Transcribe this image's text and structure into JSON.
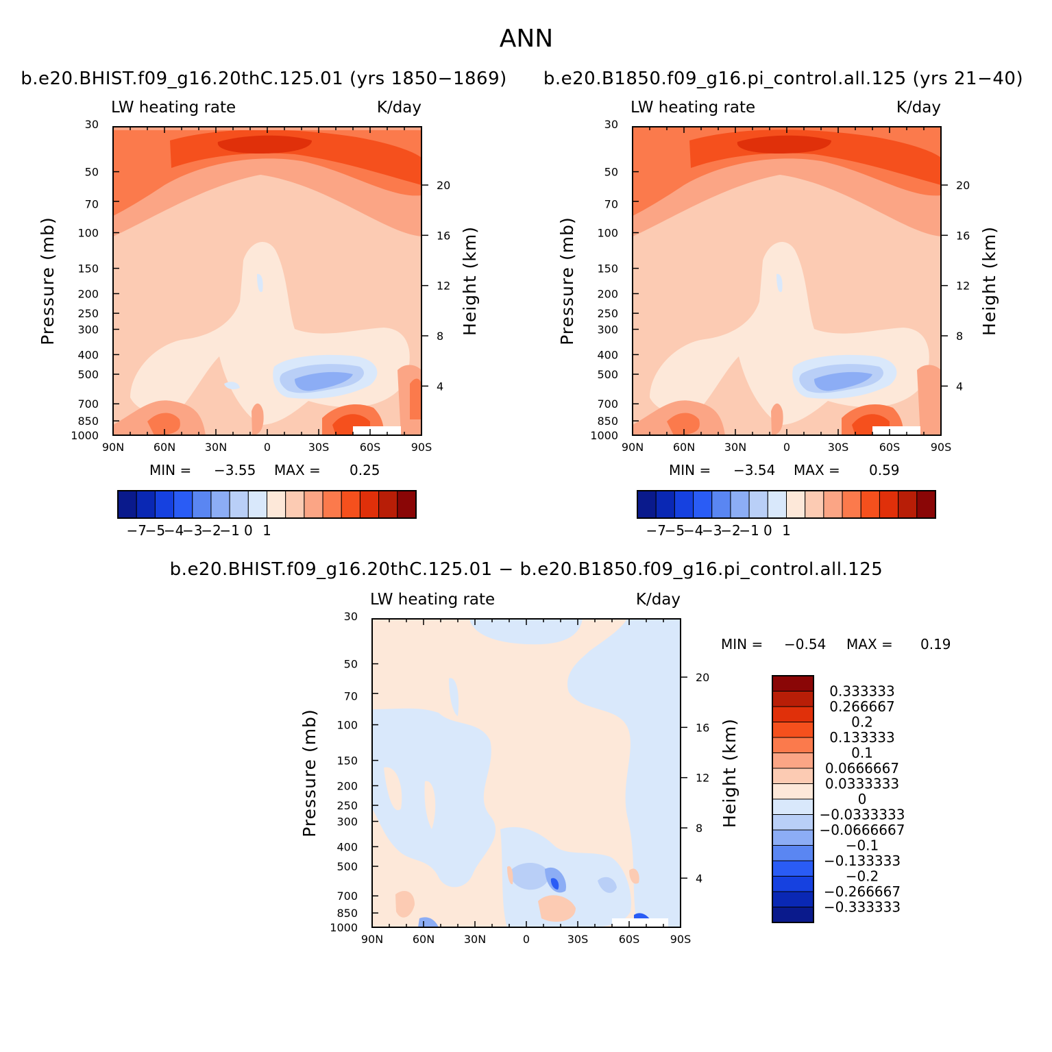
{
  "page": {
    "title": "ANN"
  },
  "chart_data": [
    {
      "type": "contour",
      "id": "panel-control-hist",
      "title": "b.e20.BHIST.f09_g16.20thC.125.01 (yrs 1850-1869)",
      "left_string": "LW heating rate",
      "right_string": "K/day",
      "xlabel": "",
      "ylabel": "Pressure (mb)",
      "ylabel_right": "Height (km)",
      "x_ticks": [
        "90N",
        "60N",
        "30N",
        "0",
        "30S",
        "60S",
        "90S"
      ],
      "y_ticks": [
        "30",
        "50",
        "70",
        "100",
        "150",
        "200",
        "250",
        "300",
        "400",
        "500",
        "700",
        "850",
        "1000"
      ],
      "y_right_ticks": [
        "20",
        "16",
        "12",
        "8",
        "4"
      ],
      "min_label": "MIN =",
      "min_value": "-3.55",
      "max_label": "MAX =",
      "max_value": "0.25",
      "colorbar_labels": [
        "-7",
        "-5",
        "-4",
        "-3",
        "-2",
        "-1",
        "0",
        "1"
      ]
    },
    {
      "type": "contour",
      "id": "panel-control-pi",
      "title": "b.e20.B1850.f09_g16.pi_control.all.125 (yrs 21-40)",
      "left_string": "LW heating rate",
      "right_string": "K/day",
      "xlabel": "",
      "ylabel": "Pressure (mb)",
      "ylabel_right": "Height (km)",
      "x_ticks": [
        "90N",
        "60N",
        "30N",
        "0",
        "30S",
        "60S",
        "90S"
      ],
      "y_ticks": [
        "30",
        "50",
        "70",
        "100",
        "150",
        "200",
        "250",
        "300",
        "400",
        "500",
        "700",
        "850",
        "1000"
      ],
      "y_right_ticks": [
        "20",
        "16",
        "12",
        "8",
        "4"
      ],
      "min_label": "MIN =",
      "min_value": "-3.54",
      "max_label": "MAX =",
      "max_value": "0.59",
      "colorbar_labels": [
        "-7",
        "-5",
        "-4",
        "-3",
        "-2",
        "-1",
        "0",
        "1"
      ]
    },
    {
      "type": "contour",
      "id": "panel-diff",
      "title": "b.e20.BHIST.f09_g16.20thC.125.01 - b.e20.B1850.f09_g16.pi_control.all.125",
      "left_string": "LW heating rate",
      "right_string": "K/day",
      "xlabel": "",
      "ylabel": "Pressure (mb)",
      "ylabel_right": "Height (km)",
      "x_ticks": [
        "90N",
        "60N",
        "30N",
        "0",
        "30S",
        "60S",
        "90S"
      ],
      "y_ticks": [
        "30",
        "50",
        "70",
        "100",
        "150",
        "200",
        "250",
        "300",
        "400",
        "500",
        "700",
        "850",
        "1000"
      ],
      "y_right_ticks": [
        "20",
        "16",
        "12",
        "8",
        "4"
      ],
      "min_label": "MIN =",
      "min_value": "-0.54",
      "max_label": "MAX =",
      "max_value": "0.19",
      "colorbar_labels": [
        "0.333333",
        "0.266667",
        "0.2",
        "0.133333",
        "0.1",
        "0.0666667",
        "0.0333333",
        "0",
        "-0.0333333",
        "-0.0666667",
        "-0.1",
        "-0.133333",
        "-0.2",
        "-0.266667",
        "-0.333333"
      ]
    }
  ],
  "colors": {
    "ramp_cool_to_warm": [
      "#0a1a8c",
      "#0a28b4",
      "#1641e0",
      "#2a5cf5",
      "#5a86f2",
      "#8cadf5",
      "#b9cff7",
      "#d9e8fb",
      "#fde8d9",
      "#fccbb3",
      "#fba585",
      "#fb7a4c",
      "#f5501d",
      "#e0300a",
      "#b81e07",
      "#8a0606"
    ],
    "ramp_warm_to_cool": [
      "#8a0606",
      "#b81e07",
      "#e0300a",
      "#f5501d",
      "#fb7a4c",
      "#fba585",
      "#fccbb3",
      "#fde8d9",
      "#d9e8fb",
      "#b9cff7",
      "#8cadf5",
      "#5a86f2",
      "#2a5cf5",
      "#1641e0",
      "#0a28b4",
      "#0a1a8c"
    ]
  }
}
